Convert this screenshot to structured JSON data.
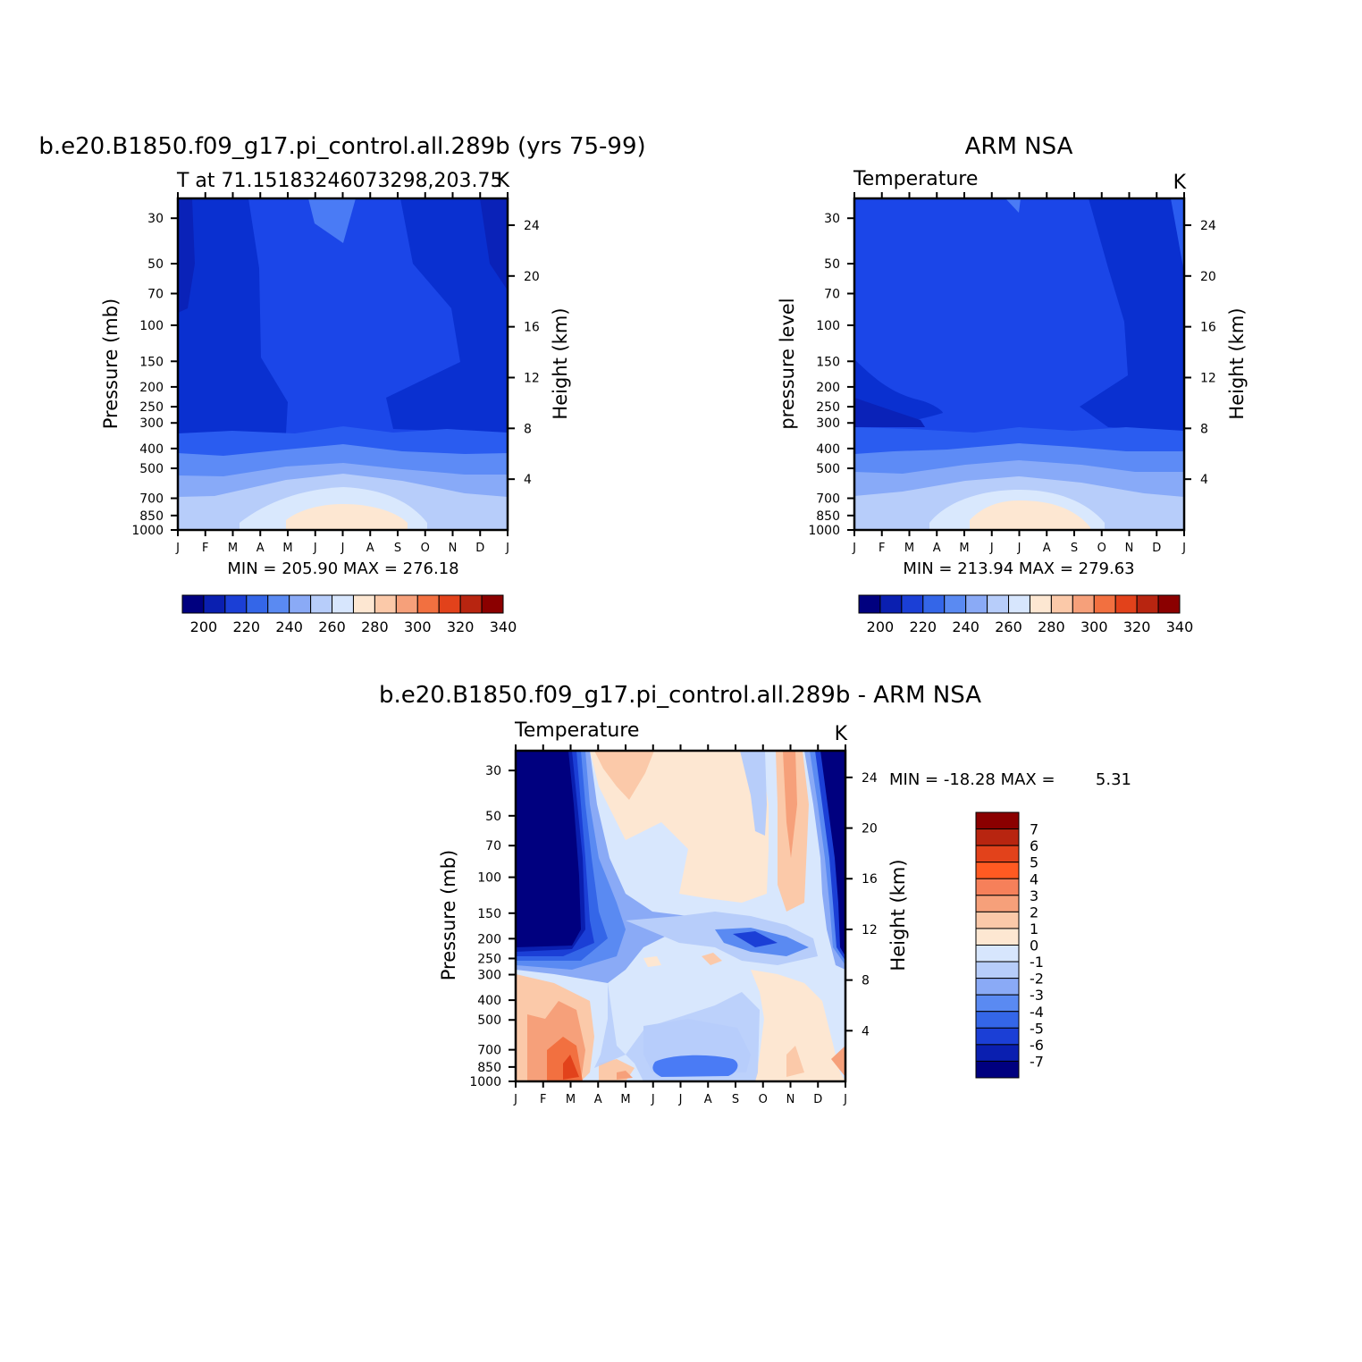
{
  "chart_data": [
    {
      "type": "heatmap",
      "title": "b.e20.B1850.f09_g17.pi_control.all.289b (yrs 75-99)",
      "subtitle_left": "T at 71.15183246073298,203.75",
      "subtitle_right": "K",
      "ylabel_left": "Pressure (mb)",
      "ylabel_right": "Height (km)",
      "stats": "MIN = 205.90 MAX = 276.18",
      "x_ticks": [
        "J",
        "F",
        "M",
        "A",
        "M",
        "J",
        "J",
        "A",
        "S",
        "O",
        "N",
        "D",
        "J"
      ],
      "pressure_ticks": [
        "30",
        "50",
        "70",
        "100",
        "150",
        "200",
        "250",
        "300",
        "400",
        "500",
        "700",
        "850",
        "1000"
      ],
      "height_ticks": [
        "24",
        "20",
        "16",
        "12",
        "8",
        "4"
      ],
      "colorbar_ticks": [
        "200",
        "220",
        "240",
        "260",
        "280",
        "300",
        "320",
        "340"
      ],
      "colorbar_colors": [
        "#00007f",
        "#0a1fb0",
        "#1b3fd6",
        "#3466e8",
        "#5a8af2",
        "#8aaaf6",
        "#b7cdfa",
        "#d7e6fd",
        "#fde7d2",
        "#fbc9a9",
        "#f6a07a",
        "#f27040",
        "#e2421b",
        "#b82510",
        "#8b0000"
      ],
      "ylim_mb": [
        1000,
        24
      ]
    },
    {
      "type": "heatmap",
      "title": "ARM NSA",
      "subtitle_left": "Temperature",
      "subtitle_right": "K",
      "ylabel_left": "pressure level",
      "ylabel_right": "Height (km)",
      "stats": "MIN = 213.94 MAX = 279.63",
      "x_ticks": [
        "J",
        "F",
        "M",
        "A",
        "M",
        "J",
        "J",
        "A",
        "S",
        "O",
        "N",
        "D",
        "J"
      ],
      "pressure_ticks": [
        "30",
        "50",
        "70",
        "100",
        "150",
        "200",
        "250",
        "300",
        "400",
        "500",
        "700",
        "850",
        "1000"
      ],
      "height_ticks": [
        "24",
        "20",
        "16",
        "12",
        "8",
        "4"
      ],
      "colorbar_ticks": [
        "200",
        "220",
        "240",
        "260",
        "280",
        "300",
        "320",
        "340"
      ],
      "colorbar_colors": [
        "#00007f",
        "#0a1fb0",
        "#1b3fd6",
        "#3466e8",
        "#5a8af2",
        "#8aaaf6",
        "#b7cdfa",
        "#d7e6fd",
        "#fde7d2",
        "#fbc9a9",
        "#f6a07a",
        "#f27040",
        "#e2421b",
        "#b82510",
        "#8b0000"
      ],
      "ylim_mb": [
        1000,
        24
      ]
    },
    {
      "type": "heatmap",
      "title": "b.e20.B1850.f09_g17.pi_control.all.289b - ARM NSA",
      "subtitle_left": "Temperature",
      "subtitle_right": "K",
      "ylabel_left": "Pressure (mb)",
      "ylabel_right": "Height (km)",
      "stats_min_label": "MIN = -18.28 MAX =",
      "stats_max_value": "5.31",
      "x_ticks": [
        "J",
        "F",
        "M",
        "A",
        "M",
        "J",
        "J",
        "A",
        "S",
        "O",
        "N",
        "D",
        "J"
      ],
      "pressure_ticks": [
        "30",
        "50",
        "70",
        "100",
        "150",
        "200",
        "250",
        "300",
        "400",
        "500",
        "700",
        "850",
        "1000"
      ],
      "height_ticks": [
        "24",
        "20",
        "16",
        "12",
        "8",
        "4"
      ],
      "colorbar_ticks": [
        "7",
        "6",
        "5",
        "4",
        "3",
        "2",
        "1",
        "0",
        "-1",
        "-2",
        "-3",
        "-4",
        "-5",
        "-6",
        "-7"
      ],
      "colorbar_colors": [
        "#8b0000",
        "#b82510",
        "#e2421b",
        "#ff5a22",
        "#f6805a",
        "#f6a07a",
        "#fbc9a9",
        "#fde7d2",
        "#d7e6fd",
        "#b7cdfa",
        "#8aaaf6",
        "#5a8af2",
        "#3466e8",
        "#1b3fd6",
        "#0a1fb0",
        "#00007f"
      ],
      "ylim_mb": [
        1000,
        24
      ]
    }
  ]
}
